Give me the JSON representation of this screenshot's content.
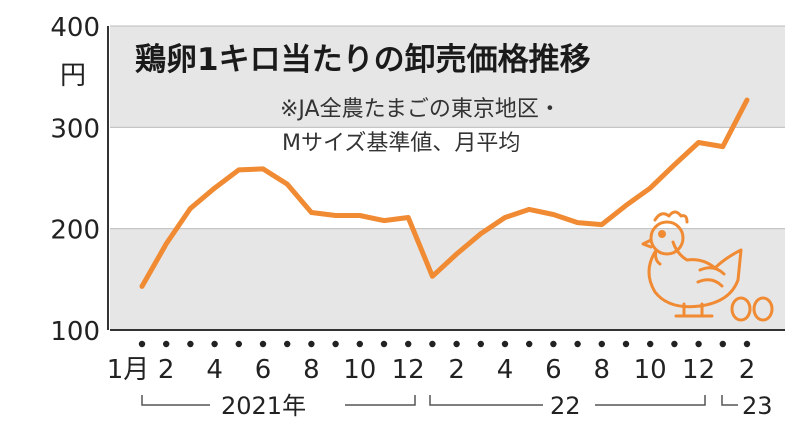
{
  "chart_data": {
    "type": "line",
    "title": "鶏卵1キロ当たりの卸売価格推移",
    "note_lines": [
      "※JA全農たまごの東京地区・",
      "Mサイズ基準値、月平均"
    ],
    "ylabel": "円",
    "ylim": [
      100,
      400
    ],
    "yticks": [
      "400",
      "300",
      "200",
      "100"
    ],
    "x_tick_labels": [
      "1月",
      "2",
      "4",
      "6",
      "8",
      "10",
      "12",
      "2",
      "4",
      "6",
      "8",
      "10",
      "12",
      "2"
    ],
    "year_labels": [
      "2021年",
      "22",
      "23"
    ],
    "line_color": "#f08a33",
    "band_color": "#e6e6e6",
    "series": [
      {
        "x": [
          "2021-01",
          "2021-02",
          "2021-03",
          "2021-04",
          "2021-05",
          "2021-06",
          "2021-07",
          "2021-08",
          "2021-09",
          "2021-10",
          "2021-11",
          "2021-12",
          "2022-01",
          "2022-02",
          "2022-03",
          "2022-04",
          "2022-05",
          "2022-06",
          "2022-07",
          "2022-08",
          "2022-09",
          "2022-10",
          "2022-11",
          "2022-12",
          "2023-01",
          "2023-02"
        ],
        "values": [
          143,
          185,
          220,
          240,
          258,
          259,
          244,
          216,
          213,
          213,
          208,
          211,
          153,
          175,
          195,
          211,
          219,
          214,
          206,
          204,
          223,
          240,
          263,
          285,
          281,
          327
        ]
      }
    ],
    "decoration": "chicken-and-eggs-illustration"
  }
}
